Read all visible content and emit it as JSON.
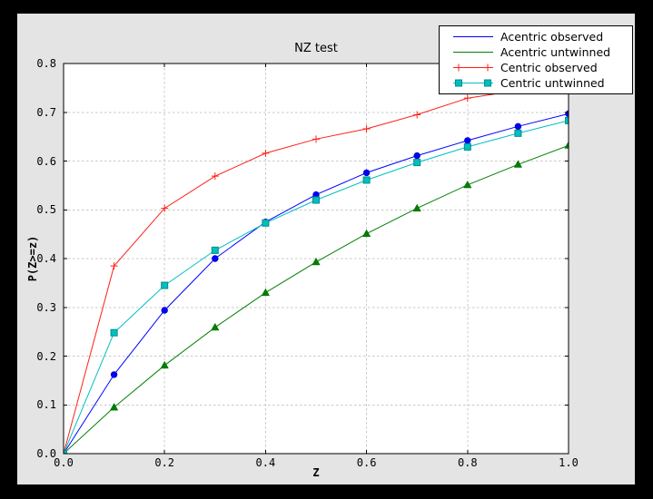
{
  "window": {
    "outer_bg": "#000000",
    "figure_bg": "#e4e4e4",
    "plot_bg": "#ffffff",
    "frame_color": "#000000",
    "grid_color": "#c8c8c8",
    "legend_bg": "#ffffff",
    "legend_border": "#000000"
  },
  "chart_data": {
    "type": "line",
    "title": "NZ test",
    "xlabel": "Z",
    "ylabel": "P(Z>=z)",
    "xlim": [
      0.0,
      1.0
    ],
    "ylim": [
      0.0,
      0.8
    ],
    "grid": "dashed",
    "legend_position": "upper right overlapping plot",
    "xtick_labels": [
      "0.0",
      "0.2",
      "0.4",
      "0.6",
      "0.8",
      "1.0"
    ],
    "xtick_values": [
      0.0,
      0.2,
      0.4,
      0.6,
      0.8,
      1.0
    ],
    "ytick_labels": [
      "0.0",
      "0.1",
      "0.2",
      "0.3",
      "0.4",
      "0.5",
      "0.6",
      "0.7",
      "0.8"
    ],
    "ytick_values": [
      0.0,
      0.1,
      0.2,
      0.3,
      0.4,
      0.5,
      0.6,
      0.7,
      0.8
    ],
    "x": [
      0.0,
      0.1,
      0.2,
      0.3,
      0.4,
      0.5,
      0.6,
      0.7,
      0.8,
      0.9,
      1.0
    ],
    "series": [
      {
        "name": "Acentric observed",
        "color": "#0000ff",
        "marker": "circle",
        "marker_edge": "#0000cc",
        "legend_marker": false,
        "values": [
          0.0,
          0.162,
          0.294,
          0.4,
          0.475,
          0.531,
          0.576,
          0.611,
          0.642,
          0.671,
          0.697
        ]
      },
      {
        "name": "Acentric untwinned",
        "color": "#007f00",
        "marker": "triangle",
        "marker_edge": "#006600",
        "legend_marker": false,
        "values": [
          0.0,
          0.095,
          0.181,
          0.259,
          0.33,
          0.393,
          0.451,
          0.503,
          0.551,
          0.593,
          0.632
        ]
      },
      {
        "name": "Centric observed",
        "color": "#ff1e14",
        "marker": "plus",
        "marker_edge": "#ff1e14",
        "legend_marker": true,
        "values": [
          0.0,
          0.385,
          0.503,
          0.569,
          0.616,
          0.645,
          0.666,
          0.695,
          0.729,
          0.745,
          0.757
        ]
      },
      {
        "name": "Centric untwinned",
        "color": "#00bfbf",
        "marker": "square",
        "marker_edge": "#008c8c",
        "legend_marker": true,
        "values": [
          0.0,
          0.248,
          0.345,
          0.417,
          0.473,
          0.52,
          0.561,
          0.597,
          0.629,
          0.657,
          0.683
        ]
      }
    ]
  }
}
